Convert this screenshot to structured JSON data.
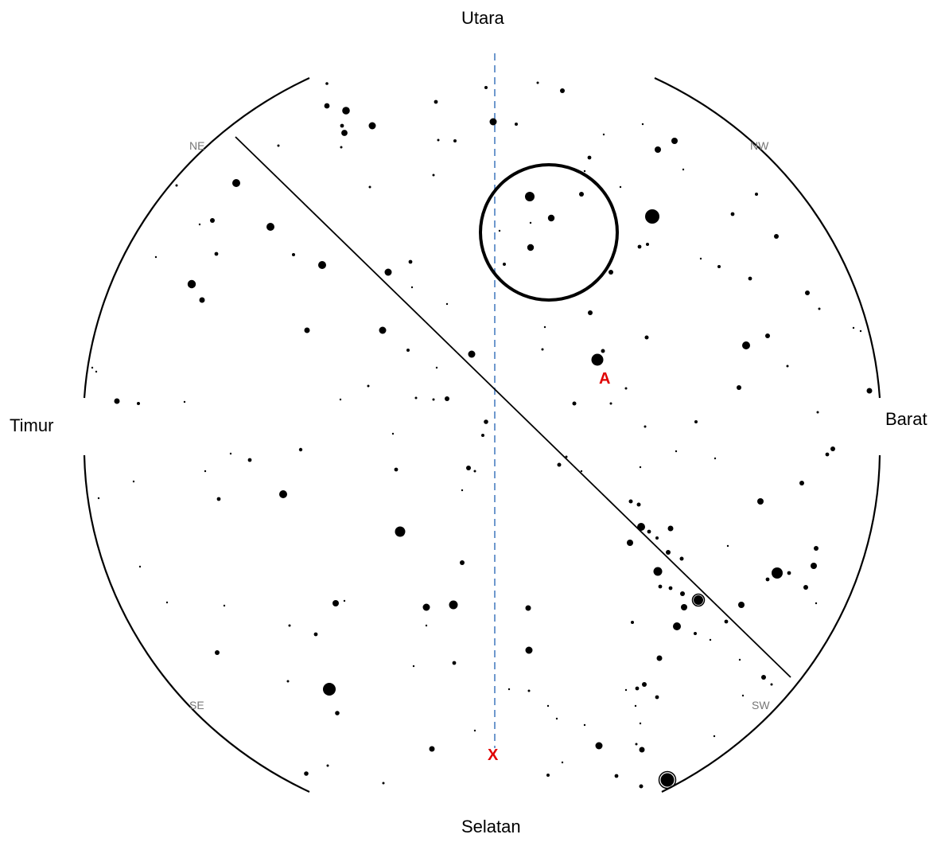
{
  "directions": {
    "north": "Utara",
    "south": "Selatan",
    "east": "Timur",
    "west": "Barat"
  },
  "ordinals": {
    "ne": "NE",
    "nw": "NW",
    "se": "SE",
    "sw": "SW"
  },
  "markers": {
    "a": "A",
    "x": "X"
  },
  "colors": {
    "meridian": "#4a7fc1",
    "marker": "#e00000",
    "ordinal": "#777777"
  }
}
